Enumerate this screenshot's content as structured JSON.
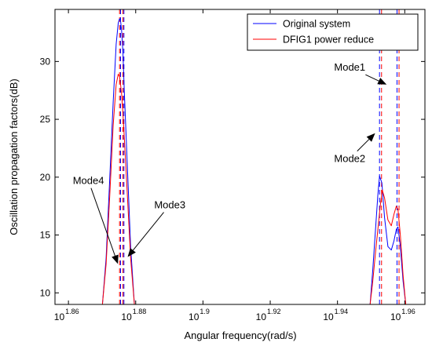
{
  "chart_data": {
    "type": "line",
    "xlabel": "Angular frequency(rad/s)",
    "ylabel": "Oscillation propagation factors(dB)",
    "xscale": "log",
    "xlim_exponent": [
      1.856,
      1.966
    ],
    "ylim": [
      9,
      34.5
    ],
    "x_ticks": [
      {
        "base": "10",
        "exp": "1.86",
        "value": 1.86
      },
      {
        "base": "10",
        "exp": "1.88",
        "value": 1.88
      },
      {
        "base": "10",
        "exp": "1.9",
        "value": 1.9
      },
      {
        "base": "10",
        "exp": "1.92",
        "value": 1.92
      },
      {
        "base": "10",
        "exp": "1.94",
        "value": 1.94
      },
      {
        "base": "10",
        "exp": "1.96",
        "value": 1.96
      }
    ],
    "y_ticks": [
      {
        "label": "10",
        "value": 10
      },
      {
        "label": "15",
        "value": 15
      },
      {
        "label": "20",
        "value": 20
      },
      {
        "label": "25",
        "value": 25
      },
      {
        "label": "30",
        "value": 30
      }
    ],
    "legend_position": "top-right",
    "series": [
      {
        "name": "Original system",
        "color": "#0000ff",
        "x": [
          1.8701,
          1.8712,
          1.8723,
          1.8733,
          1.8742,
          1.8748,
          1.8752,
          1.8755,
          1.8758,
          1.8762,
          1.8766,
          1.8775,
          1.8785,
          1.8796,
          1.9497,
          1.9505,
          1.9513,
          1.952,
          1.9525,
          1.9532,
          1.954,
          1.955,
          1.956,
          1.9568,
          1.9575,
          1.958,
          1.9587,
          1.9595,
          1.9603
        ],
        "y": [
          9,
          13,
          20,
          26.5,
          31.5,
          33.3,
          33.7,
          33.5,
          32.7,
          30.8,
          27.5,
          21,
          14,
          9,
          9,
          12,
          15.5,
          18.5,
          20.1,
          19.5,
          16.5,
          14,
          13.7,
          14.5,
          15.5,
          15.7,
          14,
          11,
          9
        ]
      },
      {
        "name": "DFIG1 power reduce",
        "color": "#ff0000",
        "x": [
          1.8701,
          1.8712,
          1.8723,
          1.8733,
          1.8742,
          1.8748,
          1.8752,
          1.8755,
          1.8758,
          1.8762,
          1.8766,
          1.8775,
          1.8785,
          1.8796,
          1.9497,
          1.9505,
          1.9513,
          1.952,
          1.9527,
          1.9533,
          1.954,
          1.955,
          1.956,
          1.9568,
          1.9575,
          1.958,
          1.9587,
          1.9595,
          1.9603
        ],
        "y": [
          9,
          12.5,
          18.5,
          24.5,
          28,
          28.9,
          28.7,
          28,
          27.2,
          25.5,
          23.5,
          18.5,
          13,
          9,
          9,
          11,
          13.5,
          15.5,
          17.5,
          18.9,
          18.2,
          16.3,
          15.8,
          16.8,
          17.5,
          17.2,
          15,
          11.5,
          9
        ]
      }
    ],
    "mode_lines": [
      {
        "x": 1.8752,
        "color": "#ff0000",
        "label": "Mode4"
      },
      {
        "x": 1.8755,
        "color": "#0000ff",
        "label": "Mode4"
      },
      {
        "x": 1.8762,
        "color": "#ff0000",
        "label": "Mode3"
      },
      {
        "x": 1.8765,
        "color": "#0000ff",
        "label": "Mode3"
      },
      {
        "x": 1.9525,
        "color": "#0000ff",
        "label": "Mode2"
      },
      {
        "x": 1.9531,
        "color": "#ff0000",
        "label": "Mode2"
      },
      {
        "x": 1.9577,
        "color": "#0000ff",
        "label": "Mode1"
      },
      {
        "x": 1.9583,
        "color": "#ff0000",
        "label": "Mode1"
      }
    ],
    "annotations": [
      {
        "text": "Mode1",
        "text_x": 1.939,
        "text_y": 29.2,
        "arrow_to_x": 1.9546,
        "arrow_to_y": 28.0
      },
      {
        "text": "Mode2",
        "text_x": 1.939,
        "text_y": 21.3,
        "arrow_to_x": 1.9512,
        "arrow_to_y": 23.8
      },
      {
        "text": "Mode3",
        "text_x": 1.8855,
        "text_y": 17.3,
        "arrow_to_x": 1.8776,
        "arrow_to_y": 13.1
      },
      {
        "text": "Mode4",
        "text_x": 1.8613,
        "text_y": 19.4,
        "arrow_to_x": 1.8747,
        "arrow_to_y": 12.5
      }
    ]
  }
}
